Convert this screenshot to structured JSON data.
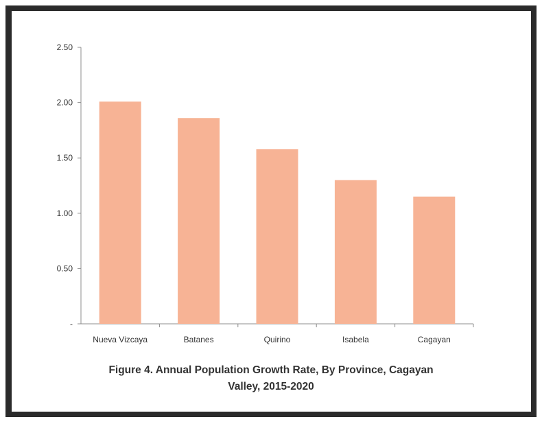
{
  "chart_data": {
    "type": "bar",
    "title": "Figure 4. Annual Population Growth Rate,  By Province, Cagayan Valley, 2015-2020",
    "title_lines": [
      "Figure 4. Annual Population Growth Rate,  By Province, Cagayan",
      "Valley, 2015-2020"
    ],
    "categories": [
      "Nueva Vizcaya",
      "Batanes",
      "Quirino",
      "Isabela",
      "Cagayan"
    ],
    "values": [
      2.01,
      1.86,
      1.58,
      1.3,
      1.15
    ],
    "xlabel": "",
    "ylabel": "",
    "ylim": [
      0,
      2.5
    ],
    "yticks": [
      0,
      0.5,
      1.0,
      1.5,
      2.0,
      2.5
    ],
    "ytick_labels": [
      "-",
      "0.50",
      "1.00",
      "1.50",
      "2.00",
      "2.50"
    ],
    "bar_color": "#f7b395",
    "grid": false,
    "legend": "none"
  }
}
